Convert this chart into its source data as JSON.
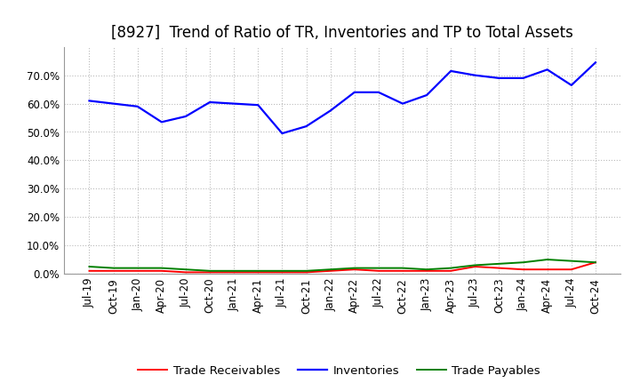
{
  "title": "[8927]  Trend of Ratio of TR, Inventories and TP to Total Assets",
  "x_labels": [
    "Jul-19",
    "Oct-19",
    "Jan-20",
    "Apr-20",
    "Jul-20",
    "Oct-20",
    "Jan-21",
    "Apr-21",
    "Jul-21",
    "Oct-21",
    "Jan-22",
    "Apr-22",
    "Jul-22",
    "Oct-22",
    "Jan-23",
    "Apr-23",
    "Jul-23",
    "Oct-23",
    "Jan-24",
    "Apr-24",
    "Jul-24",
    "Oct-24"
  ],
  "inventories": [
    0.61,
    0.6,
    0.59,
    0.535,
    0.555,
    0.605,
    0.6,
    0.595,
    0.495,
    0.52,
    0.575,
    0.64,
    0.64,
    0.6,
    0.63,
    0.715,
    0.7,
    0.69,
    0.69,
    0.72,
    0.665,
    0.745
  ],
  "trade_receivables": [
    0.01,
    0.01,
    0.01,
    0.01,
    0.005,
    0.005,
    0.005,
    0.005,
    0.005,
    0.005,
    0.01,
    0.015,
    0.01,
    0.01,
    0.01,
    0.01,
    0.025,
    0.02,
    0.015,
    0.015,
    0.015,
    0.04
  ],
  "trade_payables": [
    0.025,
    0.02,
    0.02,
    0.02,
    0.015,
    0.01,
    0.01,
    0.01,
    0.01,
    0.01,
    0.015,
    0.02,
    0.02,
    0.02,
    0.015,
    0.02,
    0.03,
    0.035,
    0.04,
    0.05,
    0.045,
    0.04
  ],
  "inventories_color": "#0000FF",
  "trade_receivables_color": "#FF0000",
  "trade_payables_color": "#008000",
  "background_color": "#FFFFFF",
  "plot_bg_color": "#FFFFFF",
  "grid_color": "#BBBBBB",
  "ylim": [
    0.0,
    0.8
  ],
  "yticks": [
    0.0,
    0.1,
    0.2,
    0.3,
    0.4,
    0.5,
    0.6,
    0.7
  ],
  "legend_labels": [
    "Trade Receivables",
    "Inventories",
    "Trade Payables"
  ],
  "title_fontsize": 12,
  "tick_fontsize": 8.5,
  "legend_fontsize": 9.5
}
